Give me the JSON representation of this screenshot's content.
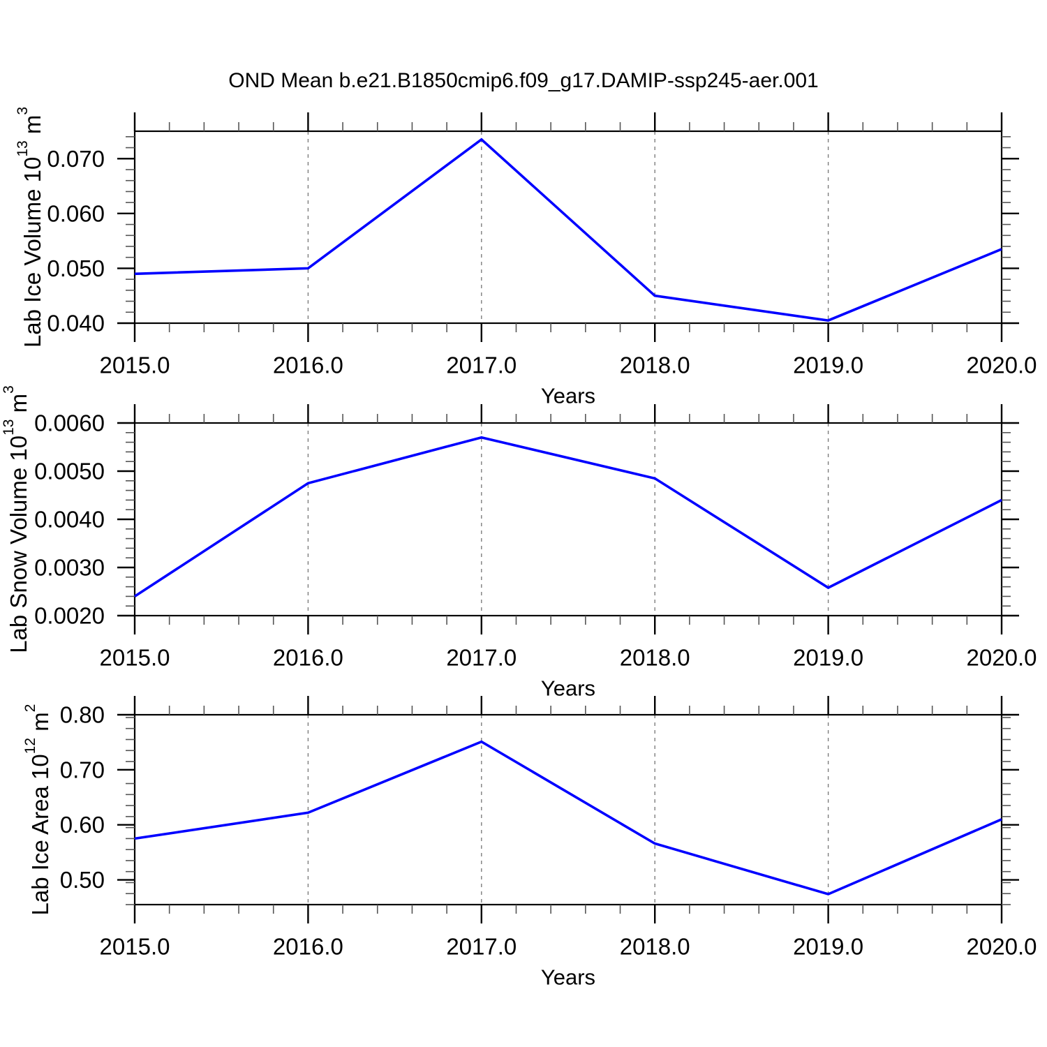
{
  "title": "OND Mean b.e21.B1850cmip6.f09_g17.DAMIP-ssp245-aer.001",
  "colors": {
    "line": "#0000ff",
    "grid": "#7d7d7d",
    "axis": "#000000",
    "minor_tick": "#555555",
    "background": "#ffffff"
  },
  "chart_data": [
    {
      "type": "line",
      "name": "lab-ice-volume",
      "ylabel_text": "Lab Ice Volume 10^13 m^3",
      "ylabel_segments": [
        {
          "text": "Lab Ice Volume 10"
        },
        {
          "text": "13",
          "sup": true
        },
        {
          "text": " m"
        },
        {
          "text": "3",
          "sup": true
        }
      ],
      "xlabel": "Years",
      "x": [
        2015.0,
        2016.0,
        2017.0,
        2018.0,
        2019.0,
        2020.0
      ],
      "values": [
        0.049,
        0.05,
        0.0735,
        0.045,
        0.0405,
        0.0535
      ],
      "xlim": [
        2015.0,
        2020.0
      ],
      "ylim": [
        0.04,
        0.075
      ],
      "xticks_major": [
        2015.0,
        2016.0,
        2017.0,
        2018.0,
        2019.0,
        2020.0
      ],
      "xtick_labels": [
        "2015.0",
        "2016.0",
        "2017.0",
        "2018.0",
        "2019.0",
        "2020.0"
      ],
      "xminor_step": 0.2,
      "yticks_major": [
        0.04,
        0.05,
        0.06,
        0.07
      ],
      "ytick_labels": [
        "0.040",
        "0.050",
        "0.060",
        "0.070"
      ],
      "yminor_step": 0.002,
      "grid_x": [
        2016.0,
        2017.0,
        2018.0,
        2019.0
      ],
      "grid_style": "vertical-dashed",
      "legend": "none"
    },
    {
      "type": "line",
      "name": "lab-snow-volume",
      "ylabel_text": "Lab Snow Volume 10^13 m^3",
      "ylabel_segments": [
        {
          "text": "Lab Snow Volume 10"
        },
        {
          "text": "13",
          "sup": true
        },
        {
          "text": " m"
        },
        {
          "text": "3",
          "sup": true
        }
      ],
      "xlabel": "Years",
      "x": [
        2015.0,
        2016.0,
        2017.0,
        2018.0,
        2019.0,
        2020.0
      ],
      "values": [
        0.0024,
        0.00475,
        0.0057,
        0.00485,
        0.00258,
        0.0044
      ],
      "xlim": [
        2015.0,
        2020.0
      ],
      "ylim": [
        0.002,
        0.006
      ],
      "xticks_major": [
        2015.0,
        2016.0,
        2017.0,
        2018.0,
        2019.0,
        2020.0
      ],
      "xtick_labels": [
        "2015.0",
        "2016.0",
        "2017.0",
        "2018.0",
        "2019.0",
        "2020.0"
      ],
      "xminor_step": 0.2,
      "yticks_major": [
        0.002,
        0.003,
        0.004,
        0.005,
        0.006
      ],
      "ytick_labels": [
        "0.0020",
        "0.0030",
        "0.0040",
        "0.0050",
        "0.0060"
      ],
      "yminor_step": 0.0002,
      "grid_x": [
        2016.0,
        2017.0,
        2018.0,
        2019.0
      ],
      "grid_style": "vertical-dashed",
      "legend": "none"
    },
    {
      "type": "line",
      "name": "lab-ice-area",
      "ylabel_text": "Lab Ice Area 10^12 m^2",
      "ylabel_segments": [
        {
          "text": "Lab Ice Area 10"
        },
        {
          "text": "12",
          "sup": true
        },
        {
          "text": " m"
        },
        {
          "text": "2",
          "sup": true
        }
      ],
      "xlabel": "Years",
      "x": [
        2015.0,
        2016.0,
        2017.0,
        2018.0,
        2019.0,
        2020.0
      ],
      "values": [
        0.575,
        0.622,
        0.751,
        0.566,
        0.474,
        0.61
      ],
      "xlim": [
        2015.0,
        2020.0
      ],
      "ylim": [
        0.455,
        0.8
      ],
      "xticks_major": [
        2015.0,
        2016.0,
        2017.0,
        2018.0,
        2019.0,
        2020.0
      ],
      "xtick_labels": [
        "2015.0",
        "2016.0",
        "2017.0",
        "2018.0",
        "2019.0",
        "2020.0"
      ],
      "xminor_step": 0.2,
      "yticks_major": [
        0.5,
        0.6,
        0.7,
        0.8
      ],
      "ytick_labels": [
        "0.50",
        "0.60",
        "0.70",
        "0.80"
      ],
      "yminor_step": 0.02,
      "grid_x": [
        2016.0,
        2017.0,
        2018.0,
        2019.0
      ],
      "grid_style": "vertical-dashed",
      "legend": "none"
    }
  ]
}
